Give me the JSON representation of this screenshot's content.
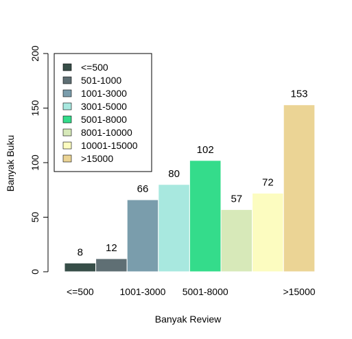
{
  "chart_data": {
    "type": "bar",
    "categories": [
      "<=500",
      "501-1000",
      "1001-3000",
      "3001-5000",
      "5001-8000",
      "8001-10000",
      "10001-15000",
      ">15000"
    ],
    "values": [
      8,
      12,
      66,
      80,
      102,
      57,
      72,
      153
    ],
    "data_labels": [
      "8",
      "12",
      "66",
      "80",
      "102",
      "57",
      "72",
      "153"
    ],
    "x_tick_labels": [
      "<=500",
      "",
      "1001-3000",
      "",
      "5001-8000",
      "",
      "",
      ">15000"
    ],
    "colors": [
      "#374e48",
      "#5f6f74",
      "#7a9dac",
      "#a8e8df",
      "#34dc8b",
      "#d7e9b9",
      "#fcfcc0",
      "#ebd495"
    ],
    "xlabel": "Banyak Review",
    "ylabel": "Banyak Buku",
    "ylim": [
      0,
      200
    ],
    "y_ticks": [
      0,
      50,
      100,
      150,
      200
    ],
    "y_tick_labels": [
      "0",
      "50",
      "100",
      "150",
      "200"
    ],
    "grid": false,
    "legend": {
      "position": "top-left",
      "entries": [
        "<=500",
        "501-1000",
        "1001-3000",
        "3001-5000",
        "5001-8000",
        "8001-10000",
        "10001-15000",
        ">15000"
      ]
    }
  }
}
